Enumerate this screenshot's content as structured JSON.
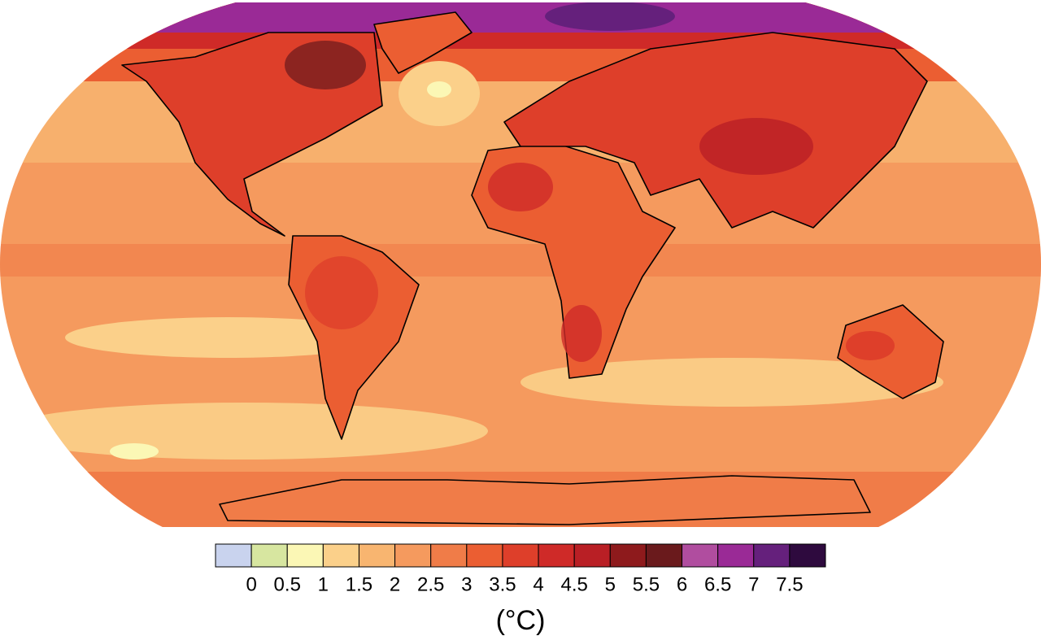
{
  "colorbar": {
    "ticks": [
      0,
      0.5,
      1,
      1.5,
      2,
      2.5,
      3,
      3.5,
      4,
      4.5,
      5,
      5.5,
      6,
      6.5,
      7,
      7.5
    ],
    "colors": [
      "#c9d3ee",
      "#d7e6a0",
      "#fbf7b5",
      "#fbd08a",
      "#f8b570",
      "#f59a5e",
      "#f07c48",
      "#eb5e32",
      "#de3f2a",
      "#cf2a28",
      "#b91f25",
      "#8e1a1c",
      "#6a1a1c",
      "#b04d9f",
      "#9a2a96",
      "#65207c",
      "#2e0a3e"
    ],
    "unit": "(°C)"
  }
}
